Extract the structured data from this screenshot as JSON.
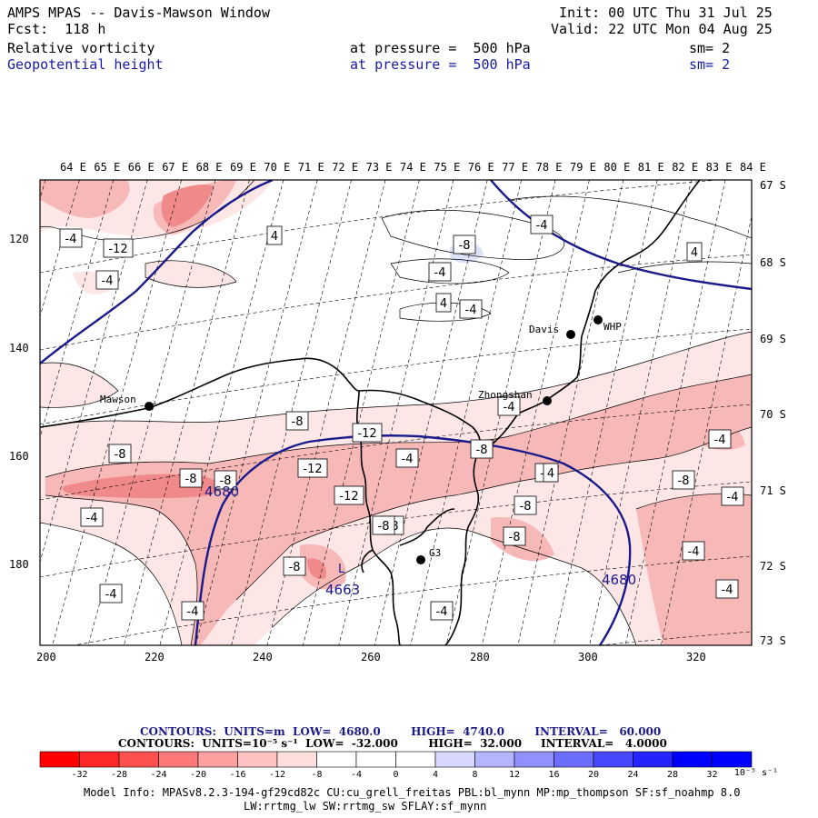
{
  "header": {
    "title": "AMPS MPAS -- Davis-Mawson Window",
    "fcst": "Fcst:  118 h",
    "init": "Init: 00 UTC Thu 31 Jul 25",
    "valid": "Valid: 22 UTC Mon 04 Aug 25",
    "field1": {
      "name": "Relative vorticity",
      "level": "at pressure =  500 hPa",
      "sm": "sm= 2"
    },
    "field2": {
      "name": "Geopotential height",
      "level": "at pressure =  500 hPa",
      "sm": "sm= 2"
    }
  },
  "map": {
    "top_lon_labels": [
      "64 E",
      "65 E",
      "66 E",
      "67 E",
      "68 E",
      "69 E",
      "70 E",
      "71 E",
      "72 E",
      "73 E",
      "74 E",
      "75 E",
      "76 E",
      "77 E",
      "78 E",
      "79 E",
      "80 E",
      "81 E",
      "82 E",
      "83 E",
      "84 E"
    ],
    "right_lat_labels": [
      "67 S",
      "68 S",
      "69 S",
      "70 S",
      "71 S",
      "72 S",
      "73 S"
    ],
    "left_y_labels": [
      "120",
      "140",
      "160",
      "180"
    ],
    "bottom_x_labels": [
      "200",
      "220",
      "240",
      "260",
      "280",
      "300",
      "320"
    ],
    "stations": [
      "Davis",
      "WHP",
      "Mawson",
      "Zhongshan",
      "G3"
    ],
    "vorticity_labels": [
      "-4",
      "-12",
      "-4",
      "4",
      "-8",
      "-4",
      "4",
      "-4",
      "-4",
      "4",
      "-8",
      "-12",
      "-4",
      "-8",
      "-12",
      "-8",
      "-8",
      "-8",
      "-12",
      "-8",
      "-8",
      "-8",
      "-8",
      "-4",
      "-4",
      "-4",
      "-8",
      "-4",
      "-4",
      "-4",
      "-8",
      "-4",
      "-4",
      "4",
      "-4",
      "-8"
    ],
    "height_labels": [
      "4680",
      "4680",
      "4663"
    ],
    "low_marker": "L",
    "colors": {
      "height_contour": "#1a1a8a",
      "coast": "#000000",
      "neg_light": "#fde6e6",
      "neg_mid": "#f7b8b8",
      "neg_strong": "#f08a8a",
      "pos_light": "#dfe3f8"
    }
  },
  "legend": {
    "line1": "CONTOURS:  UNITS=m  LOW=  4680.0        HIGH=  4740.0        INTERVAL=   60.000",
    "line2": "CONTOURS:  UNITS=10⁻⁵ s⁻¹  LOW=  -32.000        HIGH=  32.000     INTERVAL=   4.0000",
    "colorbar_ticks": [
      "-32",
      "-28",
      "-24",
      "-20",
      "-16",
      "-12",
      "-8",
      "-4",
      "0",
      "4",
      "8",
      "12",
      "16",
      "20",
      "24",
      "28",
      "32"
    ],
    "colorbar_unit": "10⁻⁵ s⁻¹",
    "colorbar_colors": [
      "#ff0000",
      "#ff2828",
      "#ff5050",
      "#ff7878",
      "#ffa0a0",
      "#ffc2c2",
      "#ffdede",
      "#ffffff",
      "#ffffff",
      "#ffffff",
      "#d8d8ff",
      "#b4b4ff",
      "#9090ff",
      "#6c6cff",
      "#4848ff",
      "#2424ff",
      "#0000ff",
      "#0000ff"
    ]
  },
  "model_info": {
    "line1": "Model Info: MPASv8.2.3-194-gf29cd82c CU:cu_grell_freitas PBL:bl_mynn MP:mp_thompson SF:sf_noahmp 8.0",
    "line2": "LW:rrtmg_lw SW:rrtmg_sw SFLAY:sf_mynn"
  }
}
